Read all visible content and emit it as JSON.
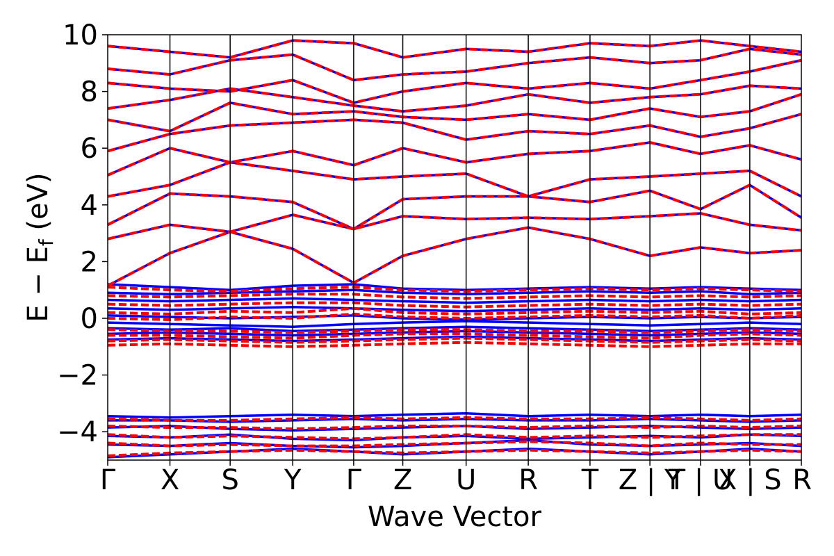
{
  "chart_data": {
    "type": "line",
    "title": "",
    "xlabel": "Wave Vector",
    "ylabel_parts": {
      "main": "E − E",
      "subscript": "f",
      "unit": " (eV)"
    },
    "ylim": [
      -5,
      10
    ],
    "xlim": [
      0,
      1
    ],
    "yticks": [
      -4,
      -2,
      0,
      2,
      4,
      6,
      8,
      10
    ],
    "ytick_labels": [
      "−4",
      "−2",
      "0",
      "2",
      "4",
      "6",
      "8",
      "10"
    ],
    "kpath_positions": [
      0,
      0.0897,
      0.1765,
      0.2667,
      0.3546,
      0.4254,
      0.5167,
      0.6063,
      0.6953,
      0.7817,
      0.8547,
      0.9257,
      1.0
    ],
    "kpath_labels": [
      "Γ",
      "X",
      "S",
      "Y",
      "Γ",
      "Z",
      "U",
      "R",
      "T",
      "Z | Y",
      "T | U",
      "X | S",
      "R"
    ],
    "grid": false,
    "legend": "none",
    "series": [
      {
        "style": "solid",
        "color": "#0000ff",
        "bands": [
          [
            -4.9,
            -4.8,
            -4.7,
            -4.6,
            -4.7,
            -4.8,
            -4.7,
            -4.6,
            -4.7,
            -4.8,
            -4.7,
            -4.6,
            -4.7
          ],
          [
            -4.45,
            -4.5,
            -4.4,
            -4.5,
            -4.55,
            -4.5,
            -4.4,
            -4.3,
            -4.45,
            -4.5,
            -4.45,
            -4.4,
            -4.5
          ],
          [
            -4.15,
            -4.2,
            -4.1,
            -4.25,
            -4.3,
            -4.2,
            -4.15,
            -4.25,
            -4.2,
            -4.15,
            -4.2,
            -4.1,
            -4.15
          ],
          [
            -3.85,
            -3.8,
            -3.9,
            -3.95,
            -3.9,
            -3.85,
            -3.8,
            -3.9,
            -3.85,
            -3.8,
            -3.85,
            -3.9,
            -3.85
          ],
          [
            -3.6,
            -3.6,
            -3.65,
            -3.6,
            -3.55,
            -3.6,
            -3.55,
            -3.6,
            -3.6,
            -3.55,
            -3.6,
            -3.65,
            -3.6
          ],
          [
            -3.45,
            -3.5,
            -3.45,
            -3.4,
            -3.45,
            -3.4,
            -3.35,
            -3.45,
            -3.4,
            -3.45,
            -3.4,
            -3.45,
            -3.4
          ],
          [
            -0.75,
            -0.7,
            -0.75,
            -0.8,
            -0.75,
            -0.7,
            -0.65,
            -0.7,
            -0.75,
            -0.8,
            -0.75,
            -0.7,
            -0.75
          ],
          [
            -0.55,
            -0.5,
            -0.55,
            -0.6,
            -0.55,
            -0.5,
            -0.45,
            -0.5,
            -0.55,
            -0.6,
            -0.55,
            -0.5,
            -0.55
          ],
          [
            -0.35,
            -0.4,
            -0.35,
            -0.45,
            -0.4,
            -0.35,
            -0.3,
            -0.35,
            -0.4,
            -0.45,
            -0.4,
            -0.35,
            -0.4
          ],
          [
            -0.15,
            -0.2,
            -0.25,
            -0.3,
            -0.2,
            -0.15,
            -0.1,
            -0.15,
            -0.2,
            -0.25,
            -0.2,
            -0.15,
            -0.2
          ],
          [
            0.1,
            0.05,
            0.0,
            0.05,
            0.1,
            0.0,
            -0.05,
            0.0,
            0.05,
            0.0,
            0.05,
            0.0,
            0.05
          ],
          [
            0.35,
            0.3,
            0.35,
            0.4,
            0.35,
            0.3,
            0.25,
            0.3,
            0.35,
            0.3,
            0.35,
            0.3,
            0.35
          ],
          [
            0.65,
            0.6,
            0.65,
            0.7,
            0.65,
            0.6,
            0.55,
            0.6,
            0.65,
            0.6,
            0.65,
            0.6,
            0.65
          ],
          [
            0.9,
            0.85,
            0.9,
            0.95,
            1.0,
            0.9,
            0.85,
            0.9,
            0.95,
            0.9,
            0.95,
            0.85,
            0.9
          ],
          [
            1.2,
            1.1,
            1.0,
            1.15,
            1.2,
            1.05,
            1.0,
            1.05,
            1.1,
            1.05,
            1.1,
            1.05,
            1.0
          ],
          [
            1.15,
            2.3,
            3.05,
            2.45,
            1.25,
            2.2,
            2.8,
            3.2,
            2.8,
            2.2,
            2.5,
            2.3,
            2.4
          ],
          [
            2.8,
            3.3,
            3.05,
            3.65,
            3.15,
            3.6,
            3.5,
            3.55,
            3.5,
            3.6,
            3.7,
            3.3,
            3.1
          ],
          [
            3.3,
            4.4,
            4.3,
            4.1,
            3.15,
            4.2,
            4.3,
            4.3,
            4.1,
            4.5,
            3.85,
            4.7,
            3.55
          ],
          [
            4.3,
            4.7,
            5.5,
            5.2,
            4.9,
            5.0,
            5.1,
            4.3,
            4.9,
            5.0,
            5.1,
            5.2,
            4.3
          ],
          [
            5.05,
            6.0,
            5.5,
            5.9,
            5.4,
            6.0,
            5.5,
            5.8,
            5.9,
            6.2,
            5.8,
            6.1,
            5.6
          ],
          [
            5.9,
            6.5,
            6.8,
            6.9,
            7.0,
            6.9,
            6.3,
            6.6,
            6.5,
            6.8,
            6.4,
            6.7,
            7.2
          ],
          [
            7.0,
            6.6,
            7.6,
            7.2,
            7.3,
            7.1,
            7.0,
            7.2,
            7.0,
            7.4,
            7.1,
            7.3,
            7.9
          ],
          [
            7.4,
            7.7,
            8.1,
            7.8,
            7.5,
            7.3,
            7.5,
            7.9,
            7.6,
            7.8,
            7.9,
            8.2,
            8.1
          ],
          [
            8.3,
            8.1,
            8.0,
            8.4,
            7.6,
            8.0,
            8.3,
            8.1,
            8.3,
            8.1,
            8.4,
            8.7,
            9.1
          ],
          [
            8.8,
            8.6,
            9.1,
            9.3,
            8.4,
            8.6,
            8.7,
            9.0,
            9.2,
            9.0,
            9.1,
            9.5,
            9.3
          ],
          [
            9.6,
            9.4,
            9.2,
            9.8,
            9.7,
            9.2,
            9.5,
            9.4,
            9.7,
            9.6,
            9.8,
            9.6,
            9.4
          ]
        ]
      },
      {
        "style": "dashed",
        "color": "#ff0000",
        "bands": [
          [
            -4.85,
            -4.75,
            -4.7,
            -4.65,
            -4.7,
            -4.75,
            -4.7,
            -4.65,
            -4.7,
            -4.75,
            -4.7,
            -4.65,
            -4.7
          ],
          [
            -4.4,
            -4.5,
            -4.45,
            -4.5,
            -4.5,
            -4.45,
            -4.4,
            -4.35,
            -4.4,
            -4.5,
            -4.4,
            -4.45,
            -4.45
          ],
          [
            -4.1,
            -4.2,
            -4.15,
            -4.2,
            -4.25,
            -4.2,
            -4.1,
            -4.2,
            -4.15,
            -4.2,
            -4.15,
            -4.1,
            -4.1
          ],
          [
            -3.8,
            -3.85,
            -3.85,
            -3.9,
            -3.85,
            -3.8,
            -3.8,
            -3.85,
            -3.8,
            -3.85,
            -3.8,
            -3.85,
            -3.8
          ],
          [
            -3.55,
            -3.6,
            -3.6,
            -3.55,
            -3.5,
            -3.55,
            -3.5,
            -3.55,
            -3.55,
            -3.5,
            -3.55,
            -3.6,
            -3.55
          ],
          [
            -0.95,
            -0.9,
            -0.95,
            -1.0,
            -0.95,
            -0.9,
            -0.85,
            -0.9,
            -0.95,
            -1.0,
            -0.95,
            -0.9,
            -0.9
          ],
          [
            -0.8,
            -0.75,
            -0.8,
            -0.85,
            -0.8,
            -0.75,
            -0.7,
            -0.75,
            -0.8,
            -0.85,
            -0.8,
            -0.75,
            -0.8
          ],
          [
            -0.6,
            -0.6,
            -0.65,
            -0.7,
            -0.6,
            -0.55,
            -0.55,
            -0.6,
            -0.65,
            -0.7,
            -0.6,
            -0.55,
            -0.6
          ],
          [
            -0.4,
            -0.45,
            -0.45,
            -0.5,
            -0.45,
            -0.4,
            -0.4,
            -0.45,
            -0.45,
            -0.5,
            -0.45,
            -0.4,
            -0.45
          ],
          [
            0.0,
            -0.05,
            0.05,
            0.0,
            0.15,
            0.05,
            0.0,
            0.05,
            0.1,
            0.05,
            0.1,
            0.0,
            0.1
          ],
          [
            0.2,
            0.15,
            0.25,
            0.2,
            0.35,
            0.2,
            0.15,
            0.2,
            0.25,
            0.2,
            0.25,
            0.15,
            0.2
          ],
          [
            0.5,
            0.45,
            0.5,
            0.55,
            0.55,
            0.45,
            0.4,
            0.45,
            0.5,
            0.45,
            0.5,
            0.45,
            0.5
          ],
          [
            0.8,
            0.75,
            0.8,
            0.85,
            0.85,
            0.75,
            0.7,
            0.75,
            0.8,
            0.75,
            0.8,
            0.75,
            0.8
          ],
          [
            1.1,
            1.0,
            0.95,
            1.05,
            1.1,
            1.0,
            0.95,
            1.0,
            1.05,
            1.0,
            1.05,
            1.0,
            0.95
          ],
          [
            1.15,
            2.3,
            3.05,
            2.45,
            1.25,
            2.2,
            2.8,
            3.2,
            2.8,
            2.2,
            2.5,
            2.3,
            2.4
          ],
          [
            2.8,
            3.3,
            3.05,
            3.65,
            3.15,
            3.6,
            3.5,
            3.55,
            3.5,
            3.6,
            3.7,
            3.3,
            3.1
          ],
          [
            3.3,
            4.4,
            4.3,
            4.1,
            3.15,
            4.2,
            4.3,
            4.3,
            4.1,
            4.5,
            3.85,
            4.7,
            3.55
          ],
          [
            4.3,
            4.7,
            5.5,
            5.2,
            4.9,
            5.0,
            5.1,
            4.3,
            4.9,
            5.0,
            5.1,
            5.2,
            4.3
          ],
          [
            5.05,
            6.0,
            5.5,
            5.9,
            5.4,
            6.0,
            5.5,
            5.8,
            5.9,
            6.2,
            5.8,
            6.1,
            5.6
          ],
          [
            5.9,
            6.5,
            6.8,
            6.9,
            7.0,
            6.9,
            6.3,
            6.6,
            6.5,
            6.8,
            6.4,
            6.7,
            7.2
          ],
          [
            7.0,
            6.6,
            7.6,
            7.2,
            7.3,
            7.1,
            7.0,
            7.2,
            7.0,
            7.4,
            7.1,
            7.3,
            7.9
          ],
          [
            7.4,
            7.7,
            8.1,
            7.8,
            7.5,
            7.3,
            7.5,
            7.9,
            7.6,
            7.8,
            7.9,
            8.2,
            8.1
          ],
          [
            8.3,
            8.1,
            8.0,
            8.4,
            7.6,
            8.0,
            8.3,
            8.1,
            8.3,
            8.1,
            8.4,
            8.7,
            9.1
          ],
          [
            8.8,
            8.6,
            9.1,
            9.3,
            8.4,
            8.6,
            8.7,
            9.0,
            9.2,
            9.0,
            9.1,
            9.5,
            9.3
          ],
          [
            9.6,
            9.4,
            9.2,
            9.8,
            9.7,
            9.2,
            9.5,
            9.4,
            9.7,
            9.6,
            9.8,
            9.6,
            9.4
          ]
        ]
      }
    ]
  }
}
